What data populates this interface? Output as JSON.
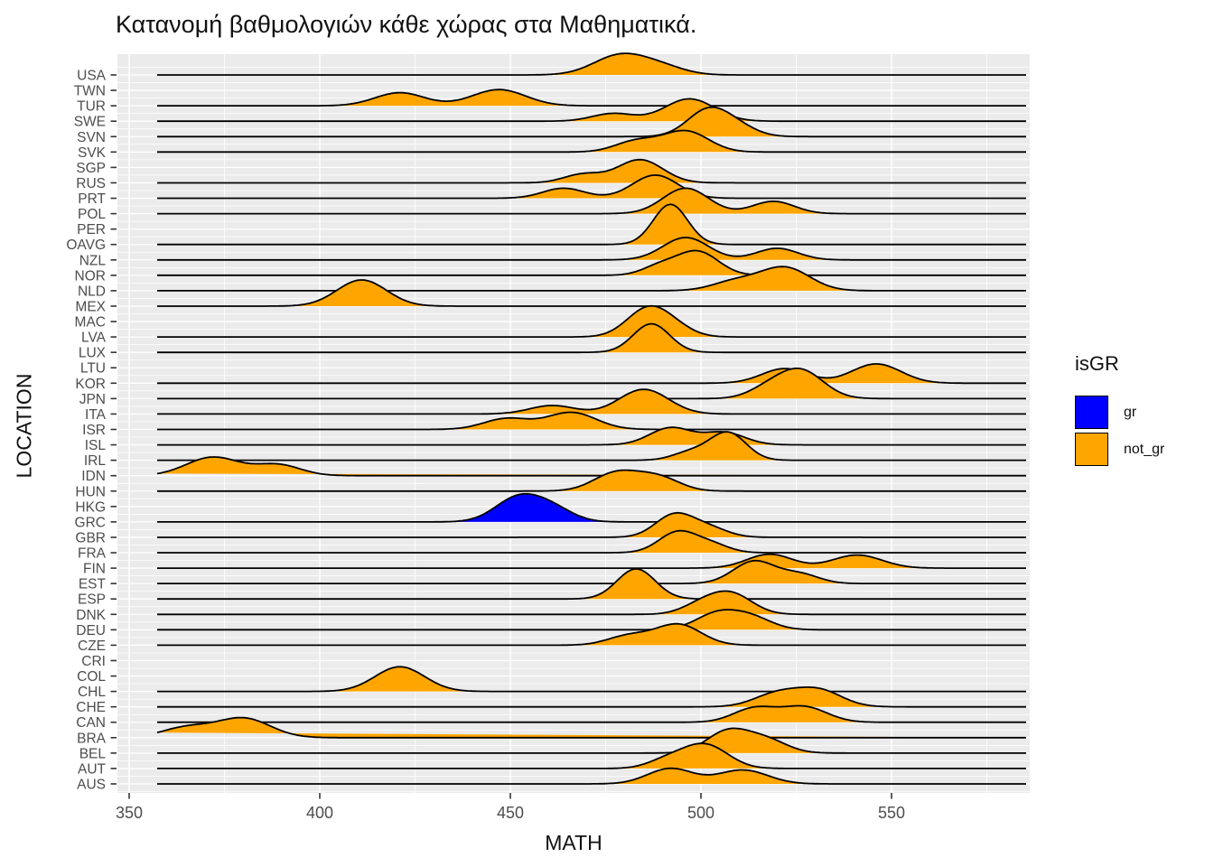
{
  "title": "Κατανομή βαθμολογιών κάθε χώρας στα Μαθηματικά.",
  "x_axis": {
    "label": "MATH",
    "tick_labels": [
      "350",
      "400",
      "450",
      "500",
      "550"
    ]
  },
  "y_axis": {
    "label": "LOCATION"
  },
  "legend": {
    "title": "isGR",
    "items": [
      {
        "label": "gr",
        "color": "#0000FF"
      },
      {
        "label": "not_gr",
        "color": "#FFA500"
      }
    ]
  },
  "colors": {
    "panel_bg": "#EBEBEB",
    "grid": "#FFFFFF",
    "ridge_outline": "#000000",
    "axis_text": "#4D4D4D",
    "tick_mark": "#333333",
    "gr_fill": "#0000FF",
    "not_gr_fill": "#FFA500"
  },
  "chart_data": {
    "type": "ridgeline",
    "title": "Κατανομή βαθμολογιών κάθε χώρας στα Μαθηματικά.",
    "xlabel": "MATH",
    "ylabel": "LOCATION",
    "x_ticks": [
      350,
      400,
      450,
      500,
      550
    ],
    "x_minor_ticks": [
      375,
      425,
      475,
      525,
      575
    ],
    "xlim": [
      347,
      586
    ],
    "legend_title": "isGR",
    "groups": {
      "gr": "#0000FF",
      "not_gr": "#FFA500"
    },
    "grid": true,
    "note": "peaks = [math_value, height_in_row_units, bandwidth]; countries with empty peaks have no data drawn",
    "countries": [
      {
        "code": "USA",
        "group": "not_gr",
        "peaks": [
          [
            479,
            1.3,
            7.0
          ],
          [
            490,
            0.45,
            6.0
          ]
        ],
        "support": [
          458,
          502
        ]
      },
      {
        "code": "TWN",
        "group": null,
        "peaks": []
      },
      {
        "code": "TUR",
        "group": "not_gr",
        "peaks": [
          [
            421,
            0.85,
            6.5
          ],
          [
            447,
            1.05,
            7.0
          ]
        ],
        "support": [
          405,
          466
        ]
      },
      {
        "code": "SWE",
        "group": "not_gr",
        "peaks": [
          [
            477,
            0.5,
            5.5
          ],
          [
            497,
            1.45,
            6.5
          ]
        ],
        "support": [
          463,
          514
        ]
      },
      {
        "code": "SVN",
        "group": "not_gr",
        "peaks": [
          [
            502,
            1.75,
            5.5
          ],
          [
            510,
            0.5,
            5.0
          ]
        ],
        "support": [
          489,
          520
        ]
      },
      {
        "code": "SVK",
        "group": "not_gr",
        "peaks": [
          [
            483,
            0.7,
            5.5
          ],
          [
            496,
            1.35,
            6.0
          ]
        ],
        "support": [
          469,
          512
        ]
      },
      {
        "code": "SGP",
        "group": null,
        "peaks": []
      },
      {
        "code": "RUS",
        "group": "not_gr",
        "peaks": [
          [
            469,
            0.55,
            5.0
          ],
          [
            484,
            1.5,
            6.0
          ]
        ],
        "support": [
          458,
          499
        ]
      },
      {
        "code": "PRT",
        "group": "not_gr",
        "peaks": [
          [
            464,
            0.65,
            5.5
          ],
          [
            488,
            1.5,
            6.0
          ]
        ],
        "support": [
          451,
          503
        ]
      },
      {
        "code": "POL",
        "group": "not_gr",
        "peaks": [
          [
            496,
            1.65,
            6.0
          ],
          [
            519,
            0.8,
            5.5
          ]
        ],
        "support": [
          483,
          533
        ]
      },
      {
        "code": "PER",
        "group": null,
        "peaks": []
      },
      {
        "code": "OAVG",
        "group": "not_gr",
        "peaks": [
          [
            492,
            2.6,
            4.5
          ]
        ],
        "support": [
          481,
          505
        ]
      },
      {
        "code": "NZL",
        "group": "not_gr",
        "peaks": [
          [
            496,
            1.45,
            6.0
          ],
          [
            520,
            0.75,
            5.5
          ]
        ],
        "support": [
          484,
          532
        ]
      },
      {
        "code": "NOR",
        "group": "not_gr",
        "peaks": [
          [
            489,
            0.55,
            4.5
          ],
          [
            499,
            1.55,
            5.5
          ]
        ],
        "support": [
          480,
          512
        ]
      },
      {
        "code": "NLD",
        "group": "not_gr",
        "peaks": [
          [
            509,
            0.6,
            6.0
          ],
          [
            522,
            1.5,
            6.5
          ]
        ],
        "support": [
          498,
          546
        ]
      },
      {
        "code": "MEX",
        "group": "not_gr",
        "peaks": [
          [
            411,
            1.7,
            6.5
          ]
        ],
        "support": [
          395,
          433
        ]
      },
      {
        "code": "MAC",
        "group": null,
        "peaks": []
      },
      {
        "code": "LVA",
        "group": "not_gr",
        "peaks": [
          [
            486,
            1.8,
            5.5
          ],
          [
            493,
            0.5,
            5.0
          ]
        ],
        "support": [
          473,
          503
        ]
      },
      {
        "code": "LUX",
        "group": "not_gr",
        "peaks": [
          [
            487,
            1.85,
            4.8
          ]
        ],
        "support": [
          476,
          500
        ]
      },
      {
        "code": "LTU",
        "group": null,
        "peaks": []
      },
      {
        "code": "KOR",
        "group": "not_gr",
        "peaks": [
          [
            522,
            0.95,
            6.0
          ],
          [
            546,
            1.25,
            6.5
          ]
        ],
        "support": [
          505,
          565
        ]
      },
      {
        "code": "JPN",
        "group": "not_gr",
        "peaks": [
          [
            517,
            0.5,
            5.0
          ],
          [
            526,
            1.85,
            6.0
          ]
        ],
        "support": [
          508,
          545
        ]
      },
      {
        "code": "ITA",
        "group": "not_gr",
        "peaks": [
          [
            461,
            0.55,
            6.0
          ],
          [
            485,
            1.6,
            6.5
          ]
        ],
        "support": [
          447,
          501
        ]
      },
      {
        "code": "ISR",
        "group": "not_gr",
        "peaks": [
          [
            449,
            0.7,
            6.0
          ],
          [
            466,
            1.1,
            6.5
          ]
        ],
        "support": [
          434,
          483
        ]
      },
      {
        "code": "ISL",
        "group": "not_gr",
        "peaks": [
          [
            492,
            1.1,
            5.5
          ],
          [
            506,
            0.8,
            5.5
          ]
        ],
        "support": [
          479,
          521
        ]
      },
      {
        "code": "IRL",
        "group": "not_gr",
        "peaks": [
          [
            497,
            0.5,
            4.5
          ],
          [
            507,
            1.8,
            4.8
          ]
        ],
        "support": [
          486,
          521
        ]
      },
      {
        "code": "IDN",
        "group": "not_gr",
        "peaks": [
          [
            372,
            1.2,
            7.0
          ],
          [
            389,
            0.7,
            6.0
          ]
        ],
        "support": [
          354,
          407
        ]
      },
      {
        "code": "HUN",
        "group": "not_gr",
        "peaks": [
          [
            478,
            1.2,
            6.0
          ],
          [
            489,
            0.85,
            5.5
          ]
        ],
        "support": [
          465,
          501
        ]
      },
      {
        "code": "HKG",
        "group": null,
        "peaks": []
      },
      {
        "code": "GRC",
        "group": "gr",
        "peaks": [
          [
            452,
            1.55,
            6.0
          ],
          [
            461,
            0.8,
            5.5
          ]
        ],
        "support": [
          431,
          474
        ]
      },
      {
        "code": "GBR",
        "group": "not_gr",
        "peaks": [
          [
            493,
            1.45,
            5.0
          ],
          [
            502,
            0.6,
            5.0
          ]
        ],
        "support": [
          481,
          514
        ]
      },
      {
        "code": "FRA",
        "group": "not_gr",
        "peaks": [
          [
            494,
            1.35,
            5.0
          ],
          [
            503,
            0.5,
            4.5
          ]
        ],
        "support": [
          483,
          513
        ]
      },
      {
        "code": "FIN",
        "group": "not_gr",
        "peaks": [
          [
            518,
            0.9,
            6.0
          ],
          [
            541,
            0.85,
            6.5
          ]
        ],
        "support": [
          501,
          559
        ]
      },
      {
        "code": "EST",
        "group": "not_gr",
        "peaks": [
          [
            514,
            1.45,
            5.5
          ],
          [
            526,
            0.6,
            5.0
          ]
        ],
        "support": [
          499,
          540
        ]
      },
      {
        "code": "ESP",
        "group": "not_gr",
        "peaks": [
          [
            483,
            1.95,
            5.0
          ]
        ],
        "support": [
          470,
          498
        ]
      },
      {
        "code": "DNK",
        "group": "not_gr",
        "peaks": [
          [
            500,
            0.6,
            5.0
          ],
          [
            508,
            1.3,
            5.5
          ]
        ],
        "support": [
          490,
          522
        ]
      },
      {
        "code": "DEU",
        "group": "not_gr",
        "peaks": [
          [
            504,
            1.0,
            5.5
          ],
          [
            513,
            0.8,
            5.5
          ]
        ],
        "support": [
          492,
          526
        ]
      },
      {
        "code": "CZE",
        "group": "not_gr",
        "peaks": [
          [
            481,
            0.6,
            5.5
          ],
          [
            494,
            1.35,
            6.0
          ]
        ],
        "support": [
          468,
          514
        ]
      },
      {
        "code": "CRI",
        "group": null,
        "peaks": []
      },
      {
        "code": "COL",
        "group": null,
        "peaks": []
      },
      {
        "code": "CHL",
        "group": "not_gr",
        "peaks": [
          [
            421,
            1.6,
            6.5
          ]
        ],
        "support": [
          404,
          439
        ]
      },
      {
        "code": "CHE",
        "group": "not_gr",
        "peaks": [
          [
            520,
            0.85,
            6.0
          ],
          [
            531,
            1.05,
            6.0
          ]
        ],
        "support": [
          505,
          546
        ]
      },
      {
        "code": "CAN",
        "group": "not_gr",
        "peaks": [
          [
            514,
            0.9,
            5.5
          ],
          [
            527,
            1.0,
            6.0
          ]
        ],
        "support": [
          500,
          542
        ]
      },
      {
        "code": "BRA",
        "group": "not_gr",
        "peaks": [
          [
            365,
            0.65,
            6.5
          ],
          [
            380,
            1.25,
            7.0
          ]
        ],
        "support": [
          350,
          398
        ]
      },
      {
        "code": "BEL",
        "group": "not_gr",
        "peaks": [
          [
            507,
            1.4,
            5.5
          ],
          [
            517,
            0.85,
            5.5
          ]
        ],
        "support": [
          494,
          531
        ]
      },
      {
        "code": "AUT",
        "group": "not_gr",
        "peaks": [
          [
            491,
            0.5,
            5.0
          ],
          [
            501,
            1.55,
            6.0
          ]
        ],
        "support": [
          484,
          517
        ]
      },
      {
        "code": "AUS",
        "group": "not_gr",
        "peaks": [
          [
            492,
            1.0,
            6.0
          ],
          [
            511,
            0.9,
            6.5
          ]
        ],
        "support": [
          478,
          527
        ]
      }
    ]
  }
}
